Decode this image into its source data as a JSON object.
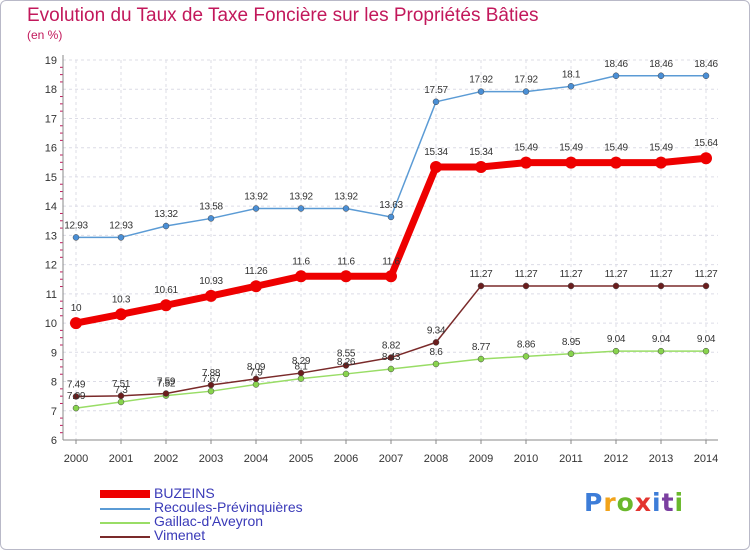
{
  "title": "Evolution du Taux de Taxe Foncière sur les Propriétés Bâties",
  "unit_label": "(en %)",
  "logo": {
    "text": "Proxiti",
    "colors": [
      "#3d7dd8",
      "#f2a31a",
      "#6ab82c",
      "#e3342f",
      "#3d7dd8",
      "#7b3fa0",
      "#6ab82c"
    ]
  },
  "chart_data": {
    "type": "line",
    "title": "Evolution du Taux de Taxe Foncière sur les Propriétés Bâties",
    "ylabel": "(en %)",
    "xlabel": "",
    "x": [
      "2000",
      "2001",
      "2002",
      "2003",
      "2004",
      "2005",
      "2006",
      "2007",
      "2008",
      "2009",
      "2010",
      "2011",
      "2012",
      "2013",
      "2014"
    ],
    "ylim": [
      6,
      19
    ],
    "yticks": [
      "6",
      "7",
      "8",
      "9",
      "10",
      "11",
      "12",
      "13",
      "14",
      "15",
      "16",
      "17",
      "18",
      "19"
    ],
    "grid": true,
    "legend": "bottom-left",
    "series": [
      {
        "name": "BUZEINS",
        "color": "#ee0000",
        "marker": "#ee0000",
        "thick": true,
        "values": [
          10,
          10.3,
          10.61,
          10.93,
          11.26,
          11.6,
          11.6,
          11.6,
          15.34,
          15.34,
          15.49,
          15.49,
          15.49,
          15.49,
          15.64
        ],
        "labels": [
          "10",
          "10.3",
          "10.61",
          "10.93",
          "11.26",
          "11.6",
          "11.6",
          "11.6",
          "15.34",
          "15.34",
          "15.49",
          "15.49",
          "15.49",
          "15.49",
          "15.64"
        ]
      },
      {
        "name": "Recoules-Prévinquières",
        "color": "#5b9bd5",
        "marker": "#4a8fd6",
        "thick": false,
        "values": [
          12.93,
          12.93,
          13.32,
          13.58,
          13.92,
          13.92,
          13.92,
          13.63,
          17.57,
          17.92,
          17.92,
          18.1,
          18.46,
          18.46,
          18.46
        ],
        "labels": [
          "12.93",
          "12.93",
          "13.32",
          "13.58",
          "13.92",
          "13.92",
          "13.92",
          "13.63",
          "17.57",
          "17.92",
          "17.92",
          "18.1",
          "18.46",
          "18.46",
          "18.46"
        ]
      },
      {
        "name": "Gaillac-d'Aveyron",
        "color": "#99dd66",
        "marker": "#88d44d",
        "thick": false,
        "values": [
          7.09,
          7.3,
          7.52,
          7.67,
          7.9,
          8.1,
          8.26,
          8.43,
          8.6,
          8.77,
          8.86,
          8.95,
          9.04,
          9.04,
          9.04
        ],
        "labels": [
          "7.09",
          "7.3",
          "7.52",
          "7.67",
          "7.9",
          "8.1",
          "8.26",
          "8.43",
          "8.6",
          "8.77",
          "8.86",
          "8.95",
          "9.04",
          "9.04",
          "9.04"
        ]
      },
      {
        "name": "Vimenet",
        "color": "#7a2a2a",
        "marker": "#6b1d1d",
        "thick": false,
        "values": [
          7.49,
          7.51,
          7.59,
          7.88,
          8.09,
          8.29,
          8.55,
          8.82,
          9.34,
          11.27,
          11.27,
          11.27,
          11.27,
          11.27,
          11.27
        ],
        "labels": [
          "7.49",
          "7.51",
          "7.59",
          "7.88",
          "8.09",
          "8.29",
          "8.55",
          "8.82",
          "9.34",
          "11.27",
          "11.27",
          "11.27",
          "11.27",
          "11.27",
          "11.27"
        ]
      }
    ]
  }
}
